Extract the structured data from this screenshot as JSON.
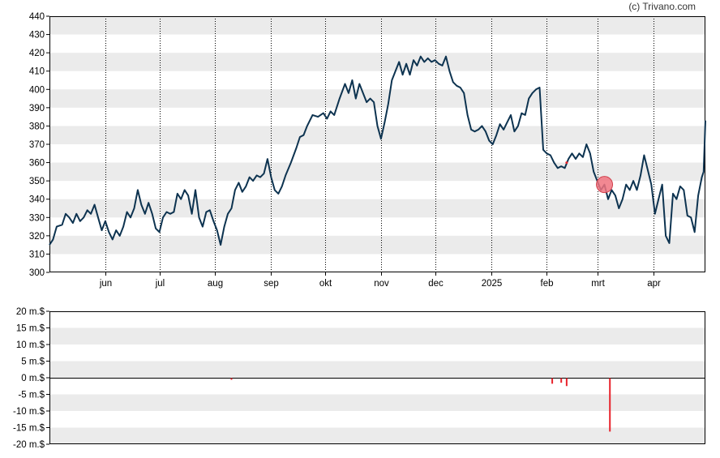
{
  "credit": "(c) Trivano.com",
  "colors": {
    "band": "#ebebeb",
    "line": "#0d3350",
    "volume_bar": "#e8232c",
    "marker_fill": "#f0737f",
    "marker_stroke": "#d0404c",
    "axis": "#000000"
  },
  "chart_data": [
    {
      "type": "line",
      "title": "",
      "xlabel": "",
      "ylabel": "",
      "ylim": [
        300,
        440
      ],
      "y_ticks": [
        300,
        310,
        320,
        330,
        340,
        350,
        360,
        370,
        380,
        390,
        400,
        410,
        420,
        430,
        440
      ],
      "x_range": [
        "2024-05-01",
        "2025-04-30"
      ],
      "x_ticks": [
        {
          "label": "jun",
          "date": "2024-06-01"
        },
        {
          "label": "jul",
          "date": "2024-07-01"
        },
        {
          "label": "aug",
          "date": "2024-08-01"
        },
        {
          "label": "sep",
          "date": "2024-09-01"
        },
        {
          "label": "okt",
          "date": "2024-10-01"
        },
        {
          "label": "nov",
          "date": "2024-11-01"
        },
        {
          "label": "dec",
          "date": "2024-12-01"
        },
        {
          "label": "2025",
          "date": "2025-01-01"
        },
        {
          "label": "feb",
          "date": "2025-02-01"
        },
        {
          "label": "mrt",
          "date": "2025-03-01"
        },
        {
          "label": "apr",
          "date": "2025-04-01"
        }
      ],
      "grid": "horizontal bands, dotted vertical lines at month starts",
      "series": [
        {
          "points": [
            [
              "2024-05-01",
              315
            ],
            [
              "2024-05-03",
              318
            ],
            [
              "2024-05-05",
              325
            ],
            [
              "2024-05-08",
              326
            ],
            [
              "2024-05-10",
              332
            ],
            [
              "2024-05-12",
              330
            ],
            [
              "2024-05-14",
              327
            ],
            [
              "2024-05-16",
              332
            ],
            [
              "2024-05-18",
              328
            ],
            [
              "2024-05-20",
              330
            ],
            [
              "2024-05-22",
              334
            ],
            [
              "2024-05-24",
              332
            ],
            [
              "2024-05-26",
              337
            ],
            [
              "2024-05-28",
              330
            ],
            [
              "2024-05-30",
              323
            ],
            [
              "2024-06-01",
              328
            ],
            [
              "2024-06-03",
              322
            ],
            [
              "2024-06-05",
              318
            ],
            [
              "2024-06-07",
              323
            ],
            [
              "2024-06-09",
              320
            ],
            [
              "2024-06-11",
              325
            ],
            [
              "2024-06-13",
              333
            ],
            [
              "2024-06-15",
              330
            ],
            [
              "2024-06-17",
              335
            ],
            [
              "2024-06-19",
              345
            ],
            [
              "2024-06-21",
              337
            ],
            [
              "2024-06-23",
              332
            ],
            [
              "2024-06-25",
              338
            ],
            [
              "2024-06-27",
              332
            ],
            [
              "2024-06-29",
              324
            ],
            [
              "2024-07-01",
              322
            ],
            [
              "2024-07-03",
              330
            ],
            [
              "2024-07-05",
              333
            ],
            [
              "2024-07-07",
              332
            ],
            [
              "2024-07-09",
              333
            ],
            [
              "2024-07-11",
              343
            ],
            [
              "2024-07-13",
              340
            ],
            [
              "2024-07-15",
              345
            ],
            [
              "2024-07-17",
              342
            ],
            [
              "2024-07-19",
              332
            ],
            [
              "2024-07-21",
              345
            ],
            [
              "2024-07-23",
              330
            ],
            [
              "2024-07-25",
              325
            ],
            [
              "2024-07-27",
              333
            ],
            [
              "2024-07-29",
              334
            ],
            [
              "2024-07-31",
              328
            ],
            [
              "2024-08-02",
              323
            ],
            [
              "2024-08-04",
              315
            ],
            [
              "2024-08-06",
              325
            ],
            [
              "2024-08-08",
              332
            ],
            [
              "2024-08-10",
              335
            ],
            [
              "2024-08-12",
              345
            ],
            [
              "2024-08-14",
              349
            ],
            [
              "2024-08-16",
              344
            ],
            [
              "2024-08-18",
              347
            ],
            [
              "2024-08-20",
              352
            ],
            [
              "2024-08-22",
              350
            ],
            [
              "2024-08-24",
              353
            ],
            [
              "2024-08-26",
              352
            ],
            [
              "2024-08-28",
              354
            ],
            [
              "2024-08-30",
              362
            ],
            [
              "2024-09-01",
              352
            ],
            [
              "2024-09-03",
              345
            ],
            [
              "2024-09-05",
              343
            ],
            [
              "2024-09-07",
              347
            ],
            [
              "2024-09-09",
              353
            ],
            [
              "2024-09-12",
              360
            ],
            [
              "2024-09-15",
              368
            ],
            [
              "2024-09-17",
              374
            ],
            [
              "2024-09-19",
              375
            ],
            [
              "2024-09-21",
              380
            ],
            [
              "2024-09-24",
              386
            ],
            [
              "2024-09-27",
              385
            ],
            [
              "2024-09-30",
              387
            ],
            [
              "2024-10-02",
              384
            ],
            [
              "2024-10-04",
              388
            ],
            [
              "2024-10-06",
              386
            ],
            [
              "2024-10-09",
              395
            ],
            [
              "2024-10-12",
              403
            ],
            [
              "2024-10-14",
              398
            ],
            [
              "2024-10-16",
              405
            ],
            [
              "2024-10-18",
              395
            ],
            [
              "2024-10-20",
              403
            ],
            [
              "2024-10-22",
              398
            ],
            [
              "2024-10-24",
              393
            ],
            [
              "2024-10-26",
              395
            ],
            [
              "2024-10-28",
              393
            ],
            [
              "2024-10-30",
              380
            ],
            [
              "2024-11-01",
              373
            ],
            [
              "2024-11-03",
              382
            ],
            [
              "2024-11-05",
              392
            ],
            [
              "2024-11-07",
              405
            ],
            [
              "2024-11-09",
              410
            ],
            [
              "2024-11-11",
              415
            ],
            [
              "2024-11-13",
              408
            ],
            [
              "2024-11-15",
              414
            ],
            [
              "2024-11-17",
              408
            ],
            [
              "2024-11-19",
              416
            ],
            [
              "2024-11-21",
              413
            ],
            [
              "2024-11-23",
              418
            ],
            [
              "2024-11-25",
              415
            ],
            [
              "2024-11-27",
              417
            ],
            [
              "2024-11-29",
              415
            ],
            [
              "2024-12-01",
              416
            ],
            [
              "2024-12-03",
              414
            ],
            [
              "2024-12-05",
              413
            ],
            [
              "2024-12-07",
              418
            ],
            [
              "2024-12-09",
              410
            ],
            [
              "2024-12-11",
              404
            ],
            [
              "2024-12-13",
              402
            ],
            [
              "2024-12-15",
              401
            ],
            [
              "2024-12-17",
              398
            ],
            [
              "2024-12-19",
              386
            ],
            [
              "2024-12-21",
              378
            ],
            [
              "2024-12-23",
              377
            ],
            [
              "2024-12-25",
              378
            ],
            [
              "2024-12-27",
              380
            ],
            [
              "2024-12-29",
              377
            ],
            [
              "2024-12-31",
              372
            ],
            [
              "2025-01-02",
              370
            ],
            [
              "2025-01-04",
              375
            ],
            [
              "2025-01-06",
              381
            ],
            [
              "2025-01-08",
              378
            ],
            [
              "2025-01-10",
              382
            ],
            [
              "2025-01-12",
              386
            ],
            [
              "2025-01-14",
              377
            ],
            [
              "2025-01-16",
              380
            ],
            [
              "2025-01-18",
              387
            ],
            [
              "2025-01-20",
              386
            ],
            [
              "2025-01-22",
              395
            ],
            [
              "2025-01-24",
              398
            ],
            [
              "2025-01-26",
              400
            ],
            [
              "2025-01-28",
              401
            ],
            [
              "2025-01-30",
              367
            ],
            [
              "2025-02-01",
              365
            ],
            [
              "2025-02-03",
              364
            ],
            [
              "2025-02-05",
              360
            ],
            [
              "2025-02-07",
              357
            ],
            [
              "2025-02-09",
              358
            ],
            [
              "2025-02-11",
              357
            ],
            [
              "2025-02-13",
              362
            ],
            [
              "2025-02-15",
              365
            ],
            [
              "2025-02-17",
              362
            ],
            [
              "2025-02-19",
              365
            ],
            [
              "2025-02-21",
              363
            ],
            [
              "2025-02-23",
              370
            ],
            [
              "2025-02-25",
              365
            ],
            [
              "2025-02-27",
              355
            ],
            [
              "2025-03-01",
              350
            ],
            [
              "2025-03-03",
              345
            ],
            [
              "2025-03-05",
              348
            ],
            [
              "2025-03-07",
              340
            ],
            [
              "2025-03-09",
              345
            ],
            [
              "2025-03-11",
              342
            ],
            [
              "2025-03-13",
              335
            ],
            [
              "2025-03-15",
              340
            ],
            [
              "2025-03-17",
              348
            ],
            [
              "2025-03-19",
              345
            ],
            [
              "2025-03-21",
              350
            ],
            [
              "2025-03-23",
              345
            ],
            [
              "2025-03-25",
              353
            ],
            [
              "2025-03-27",
              364
            ],
            [
              "2025-03-29",
              356
            ],
            [
              "2025-03-31",
              348
            ],
            [
              "2025-04-02",
              332
            ],
            [
              "2025-04-04",
              340
            ],
            [
              "2025-04-06",
              348
            ],
            [
              "2025-04-08",
              320
            ],
            [
              "2025-04-10",
              316
            ],
            [
              "2025-04-12",
              343
            ],
            [
              "2025-04-14",
              340
            ],
            [
              "2025-04-16",
              347
            ],
            [
              "2025-04-18",
              345
            ],
            [
              "2025-04-20",
              331
            ],
            [
              "2025-04-22",
              330
            ],
            [
              "2025-04-24",
              322
            ],
            [
              "2025-04-26",
              342
            ],
            [
              "2025-04-28",
              352
            ],
            [
              "2025-04-29",
              355
            ],
            [
              "2025-04-30",
              383
            ]
          ]
        }
      ],
      "annotations": [
        {
          "kind": "circle-marker",
          "date": "2025-03-05",
          "value": 348
        },
        {
          "kind": "small-dot",
          "date": "2025-02-12",
          "value": 360
        }
      ]
    },
    {
      "type": "bar",
      "title": "",
      "xlabel": "",
      "ylabel": "",
      "ylim": [
        -20,
        20
      ],
      "y_ticks": [
        {
          "value": 20,
          "label": "20 m.$"
        },
        {
          "value": 15,
          "label": "15 m.$"
        },
        {
          "value": 10,
          "label": "10 m.$"
        },
        {
          "value": 5,
          "label": "5 m.$"
        },
        {
          "value": 0,
          "label": "0 m.$"
        },
        {
          "value": -5,
          "label": "-5 m.$"
        },
        {
          "value": -10,
          "label": "-10 m.$"
        },
        {
          "value": -15,
          "label": "-15 m.$"
        },
        {
          "value": -20,
          "label": "-20 m.$"
        }
      ],
      "x_range": [
        "2024-05-01",
        "2025-04-30"
      ],
      "grid": "horizontal bands",
      "bars": [
        {
          "date": "2024-08-10",
          "value": -0.6
        },
        {
          "date": "2025-02-04",
          "value": -1.8
        },
        {
          "date": "2025-02-09",
          "value": -1.5
        },
        {
          "date": "2025-02-12",
          "value": -2.5
        },
        {
          "date": "2025-03-08",
          "value": -16.2
        }
      ]
    }
  ]
}
